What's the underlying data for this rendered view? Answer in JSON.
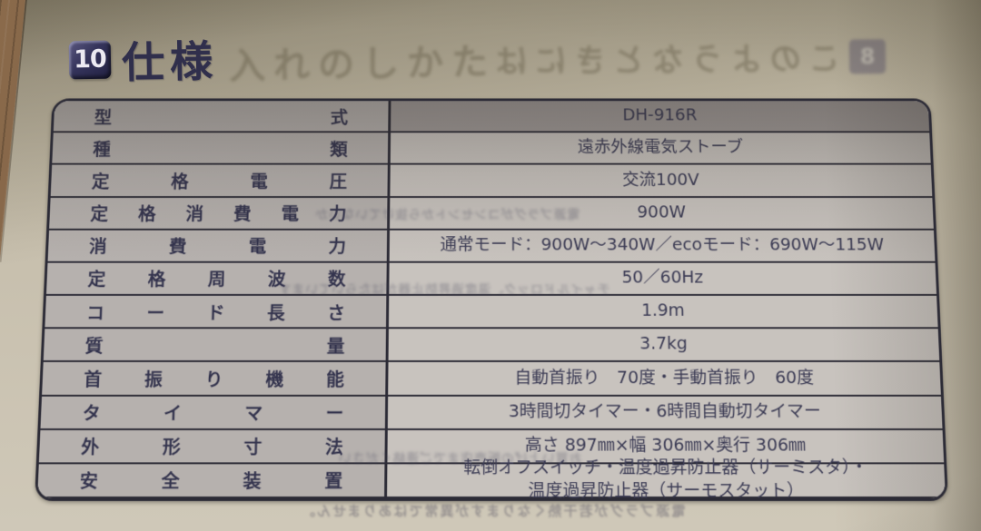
{
  "header": {
    "section_number": "10",
    "section_title": "仕様"
  },
  "ghost_showthrough": {
    "beside_title": "入れのしかた",
    "top_right_text": "このようなときには",
    "top_right_badge": "8",
    "inside_table": [
      "電源プラグがコンセントから抜けていないか",
      "チャイルドロック、温度過昇防止器がはたらいています",
      "お買い上げの販売店までご連絡ください"
    ],
    "bottom_text": "電源プラグが若干熱くなりますが異常ではありません。"
  },
  "spec_table": {
    "rows": [
      {
        "label": "型式",
        "value": "DH-916R"
      },
      {
        "label": "種類",
        "value": "遠赤外線電気ストーブ"
      },
      {
        "label": "定格電圧",
        "value": "交流100V"
      },
      {
        "label": "定格消費電力",
        "value": "900W"
      },
      {
        "label": "消費電力",
        "value": "通常モード：900W〜340W／ecoモード：690W〜115W"
      },
      {
        "label": "定格周波数",
        "value": "50／60Hz"
      },
      {
        "label": "コード長さ",
        "value": "1.9m"
      },
      {
        "label": "質量",
        "value": "3.7kg"
      },
      {
        "label": "首振り機能",
        "value": "自動首振り　70度・手動首振り　60度"
      },
      {
        "label": "タイマー",
        "value": "3時間切タイマー・6時間自動切タイマー"
      },
      {
        "label": "外形寸法",
        "value": "高さ 897㎜×幅 306㎜×奥行 306㎜"
      },
      {
        "label": "安全装置",
        "value": "転倒オフスイッチ・温度過昇防止器（サーミスタ）・\n温度過昇防止器（サーモスタット）"
      }
    ]
  },
  "colors": {
    "paper": "#c7bfad",
    "wood_desk": "#7d5f43",
    "table_border": "#2c2b36",
    "label_cell_bg": "#b6b1ae",
    "value_cell_bg": "#c8c3be",
    "model_value_cell_bg": "#a19b99",
    "ink": "#34344e",
    "badge_bg": "#34335a",
    "badge_text": "#eceaf2"
  }
}
